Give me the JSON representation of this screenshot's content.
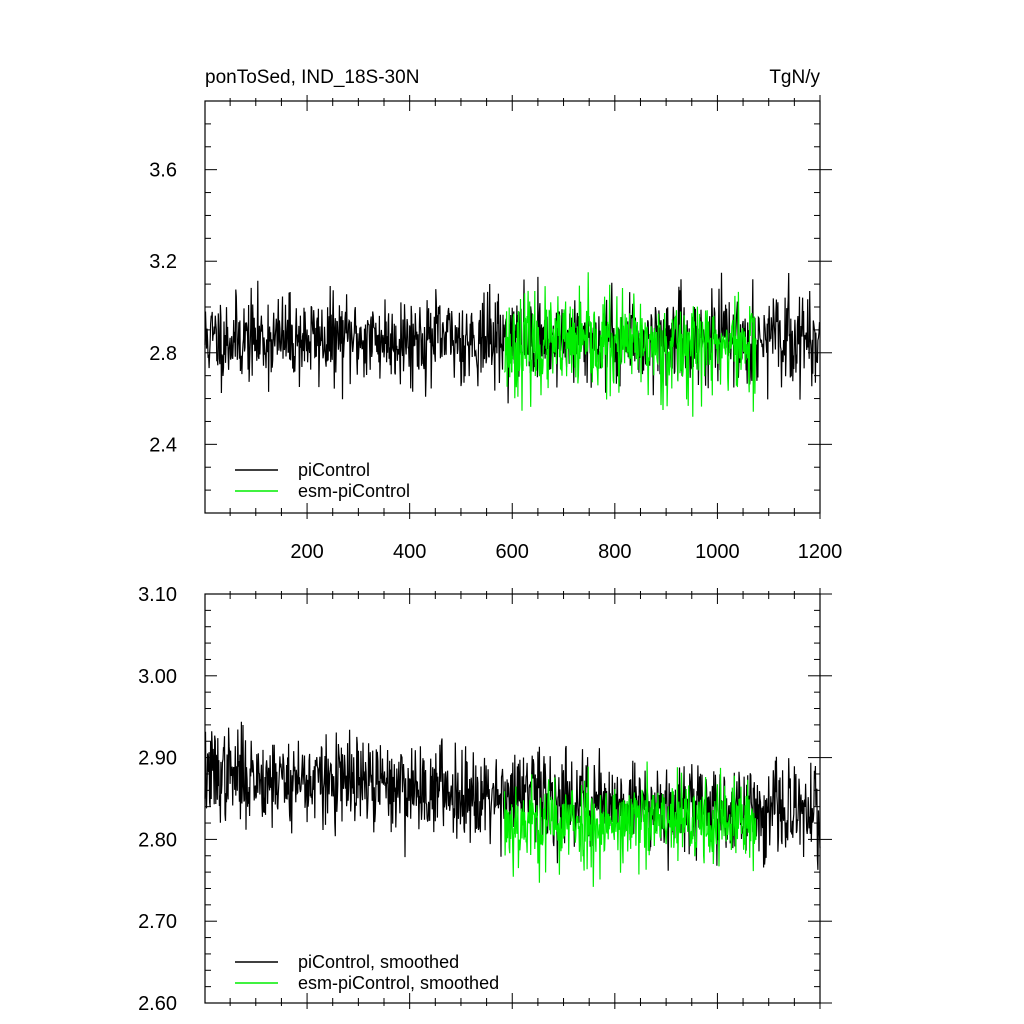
{
  "chart_data": [
    {
      "type": "line",
      "title_left": "ponToSed, IND_18S-30N",
      "title_right": "TgN/y",
      "xlim": [
        1,
        1200
      ],
      "ylim": [
        2.1,
        3.9
      ],
      "x_ticks": [
        200,
        400,
        600,
        800,
        1000,
        1200
      ],
      "x_tick_labels": [
        "200",
        "400",
        "600",
        "800",
        "1000",
        "1200"
      ],
      "y_ticks": [
        2.4,
        2.8,
        3.2,
        3.6
      ],
      "y_tick_labels": [
        "2.4",
        "2.8",
        "3.2",
        "3.6"
      ],
      "legend_position": "bottom-left",
      "series": [
        {
          "name": "piControl",
          "color": "#000000",
          "x_range": [
            1,
            1200
          ],
          "mean": 2.86,
          "spread": 0.17,
          "seed": 11
        },
        {
          "name": "esm-piControl",
          "color": "#00ee00",
          "x_range": [
            585,
            1075
          ],
          "mean": 2.83,
          "spread": 0.19,
          "seed": 23
        }
      ]
    },
    {
      "type": "line",
      "xlim": [
        1,
        1200
      ],
      "ylim": [
        2.6,
        3.1
      ],
      "x_ticks": [
        200,
        400,
        600,
        800,
        1000,
        1200
      ],
      "y_ticks": [
        2.6,
        2.7,
        2.8,
        2.9,
        3.0,
        3.1
      ],
      "y_tick_labels": [
        "2.60",
        "2.70",
        "2.80",
        "2.90",
        "3.00",
        "3.10"
      ],
      "legend_position": "bottom-left",
      "series": [
        {
          "name": "piControl, smoothed",
          "color": "#000000",
          "x_range": [
            1,
            1200
          ],
          "mean": 2.855,
          "spread": 0.05,
          "trend": -0.05,
          "seed": 37
        },
        {
          "name": "esm-piControl, smoothed",
          "color": "#00ee00",
          "x_range": [
            585,
            1075
          ],
          "mean": 2.82,
          "spread": 0.05,
          "seed": 53
        }
      ]
    }
  ]
}
